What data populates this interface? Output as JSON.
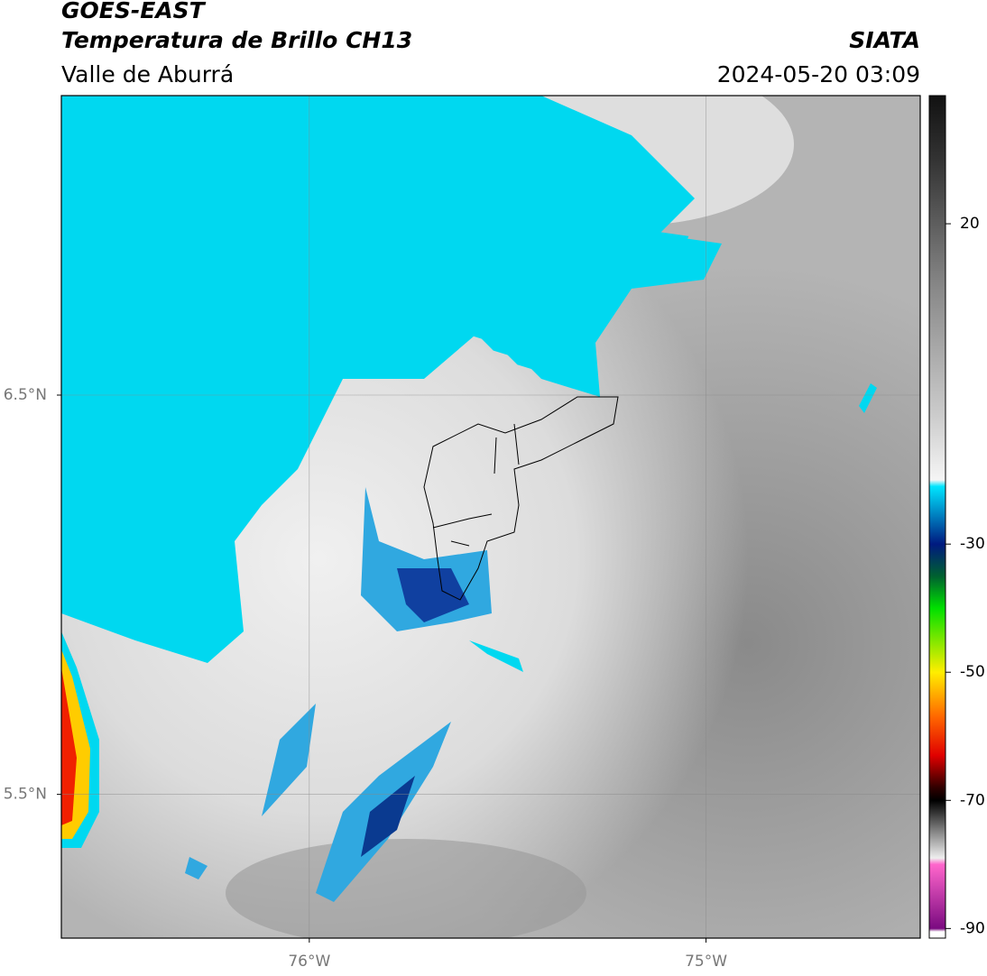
{
  "map": {
    "title": "GOES-EAST",
    "subtitle": "Temperatura de Brillo CH13",
    "source": "SIATA",
    "region": "Valle de Aburrá",
    "timestamp": "2024-05-20 03:09",
    "xlim": [
      -76.625,
      -74.46
    ],
    "ylim": [
      5.14,
      7.25
    ],
    "xticks": [
      {
        "value": -76,
        "label": "76°W"
      },
      {
        "value": -75,
        "label": "75°W"
      }
    ],
    "yticks": [
      {
        "value": 6.5,
        "label": "6.5°N"
      },
      {
        "value": 5.5,
        "label": "5.5°N"
      }
    ],
    "grid": true,
    "colorbar": {
      "clim": [
        -91.5,
        40
      ],
      "ticks": [
        20,
        -30,
        -50,
        -70,
        -90
      ],
      "colormap": [
        {
          "value": 40,
          "color": "#111111"
        },
        {
          "value": 30,
          "color": "#333333"
        },
        {
          "value": 10,
          "color": "#888888"
        },
        {
          "value": -10,
          "color": "#cccccc"
        },
        {
          "value": -20,
          "color": "#f5f5f5"
        },
        {
          "value": -21,
          "color": "#00e5ff"
        },
        {
          "value": -30,
          "color": "#001a80"
        },
        {
          "value": -35,
          "color": "#006030"
        },
        {
          "value": -40,
          "color": "#00e000"
        },
        {
          "value": -50,
          "color": "#ffee00"
        },
        {
          "value": -57,
          "color": "#ff6600"
        },
        {
          "value": -63,
          "color": "#e00000"
        },
        {
          "value": -68,
          "color": "#300000"
        },
        {
          "value": -70,
          "color": "#000000"
        },
        {
          "value": -75,
          "color": "#888888"
        },
        {
          "value": -79,
          "color": "#eeeeee"
        },
        {
          "value": -80,
          "color": "#ff66cc"
        },
        {
          "value": -90,
          "color": "#7a0a80"
        },
        {
          "value": -90.5,
          "color": "#ffffff"
        }
      ]
    }
  }
}
